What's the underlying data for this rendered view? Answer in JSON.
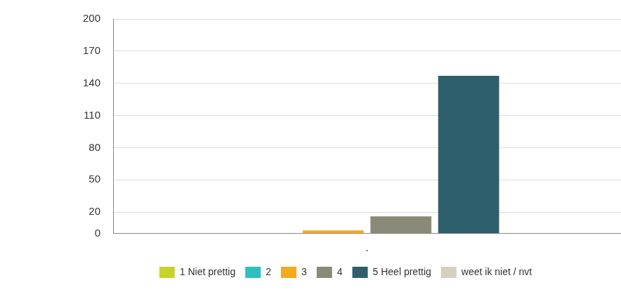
{
  "chart_data": {
    "type": "bar",
    "categories": [
      "."
    ],
    "series": [
      {
        "name": "1 Niet prettig",
        "color": "#c8d22a",
        "values": [
          0
        ]
      },
      {
        "name": "2",
        "color": "#2ebfbf",
        "values": [
          0
        ]
      },
      {
        "name": "3",
        "color": "#f5a91c",
        "values": [
          3
        ]
      },
      {
        "name": "4",
        "color": "#8a8a78",
        "values": [
          16
        ]
      },
      {
        "name": "5 Heel prettig",
        "color": "#2e5f6d",
        "values": [
          147
        ]
      },
      {
        "name": "weet ik niet / nvt",
        "color": "#d4d0c0",
        "values": [
          0
        ]
      }
    ],
    "ylim": [
      0,
      200
    ],
    "yticks": [
      0,
      20,
      50,
      80,
      110,
      140,
      170,
      200
    ],
    "grid": true,
    "legend": "bottom"
  }
}
